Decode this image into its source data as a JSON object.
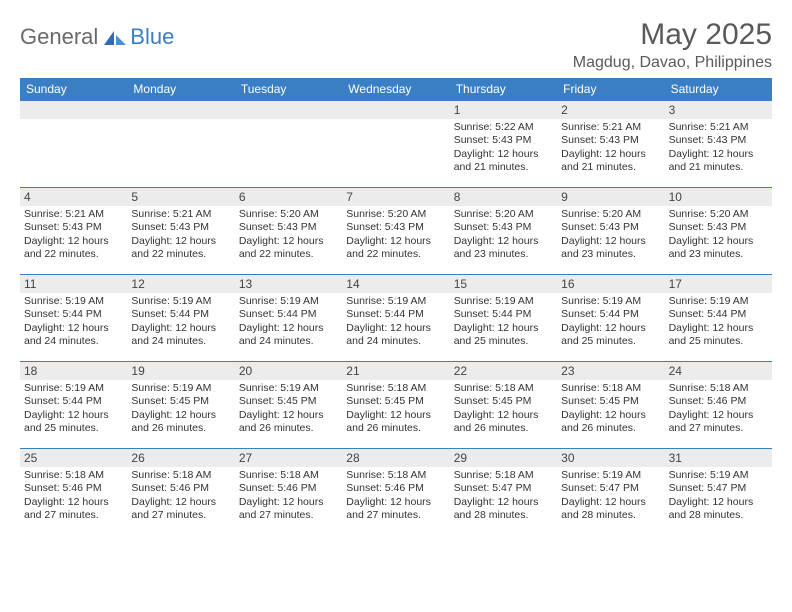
{
  "brand": {
    "general": "General",
    "blue": "Blue"
  },
  "title": "May 2025",
  "location": "Magdug, Davao, Philippines",
  "colors": {
    "header_bg": "#3a7fc4",
    "header_text": "#ffffff",
    "daynum_bg": "#ececec",
    "border": "#3a7fc4",
    "body_text": "#333333",
    "title_text": "#5a5a5a",
    "logo_gray": "#6a6a6a",
    "logo_blue": "#3a7fc4"
  },
  "day_headers": [
    "Sunday",
    "Monday",
    "Tuesday",
    "Wednesday",
    "Thursday",
    "Friday",
    "Saturday"
  ],
  "weeks": [
    [
      null,
      null,
      null,
      null,
      {
        "n": "1",
        "sr": "5:22 AM",
        "ss": "5:43 PM",
        "dl": "12 hours and 21 minutes."
      },
      {
        "n": "2",
        "sr": "5:21 AM",
        "ss": "5:43 PM",
        "dl": "12 hours and 21 minutes."
      },
      {
        "n": "3",
        "sr": "5:21 AM",
        "ss": "5:43 PM",
        "dl": "12 hours and 21 minutes."
      }
    ],
    [
      {
        "n": "4",
        "sr": "5:21 AM",
        "ss": "5:43 PM",
        "dl": "12 hours and 22 minutes."
      },
      {
        "n": "5",
        "sr": "5:21 AM",
        "ss": "5:43 PM",
        "dl": "12 hours and 22 minutes."
      },
      {
        "n": "6",
        "sr": "5:20 AM",
        "ss": "5:43 PM",
        "dl": "12 hours and 22 minutes."
      },
      {
        "n": "7",
        "sr": "5:20 AM",
        "ss": "5:43 PM",
        "dl": "12 hours and 22 minutes."
      },
      {
        "n": "8",
        "sr": "5:20 AM",
        "ss": "5:43 PM",
        "dl": "12 hours and 23 minutes."
      },
      {
        "n": "9",
        "sr": "5:20 AM",
        "ss": "5:43 PM",
        "dl": "12 hours and 23 minutes."
      },
      {
        "n": "10",
        "sr": "5:20 AM",
        "ss": "5:43 PM",
        "dl": "12 hours and 23 minutes."
      }
    ],
    [
      {
        "n": "11",
        "sr": "5:19 AM",
        "ss": "5:44 PM",
        "dl": "12 hours and 24 minutes."
      },
      {
        "n": "12",
        "sr": "5:19 AM",
        "ss": "5:44 PM",
        "dl": "12 hours and 24 minutes."
      },
      {
        "n": "13",
        "sr": "5:19 AM",
        "ss": "5:44 PM",
        "dl": "12 hours and 24 minutes."
      },
      {
        "n": "14",
        "sr": "5:19 AM",
        "ss": "5:44 PM",
        "dl": "12 hours and 24 minutes."
      },
      {
        "n": "15",
        "sr": "5:19 AM",
        "ss": "5:44 PM",
        "dl": "12 hours and 25 minutes."
      },
      {
        "n": "16",
        "sr": "5:19 AM",
        "ss": "5:44 PM",
        "dl": "12 hours and 25 minutes."
      },
      {
        "n": "17",
        "sr": "5:19 AM",
        "ss": "5:44 PM",
        "dl": "12 hours and 25 minutes."
      }
    ],
    [
      {
        "n": "18",
        "sr": "5:19 AM",
        "ss": "5:44 PM",
        "dl": "12 hours and 25 minutes."
      },
      {
        "n": "19",
        "sr": "5:19 AM",
        "ss": "5:45 PM",
        "dl": "12 hours and 26 minutes."
      },
      {
        "n": "20",
        "sr": "5:19 AM",
        "ss": "5:45 PM",
        "dl": "12 hours and 26 minutes."
      },
      {
        "n": "21",
        "sr": "5:18 AM",
        "ss": "5:45 PM",
        "dl": "12 hours and 26 minutes."
      },
      {
        "n": "22",
        "sr": "5:18 AM",
        "ss": "5:45 PM",
        "dl": "12 hours and 26 minutes."
      },
      {
        "n": "23",
        "sr": "5:18 AM",
        "ss": "5:45 PM",
        "dl": "12 hours and 26 minutes."
      },
      {
        "n": "24",
        "sr": "5:18 AM",
        "ss": "5:46 PM",
        "dl": "12 hours and 27 minutes."
      }
    ],
    [
      {
        "n": "25",
        "sr": "5:18 AM",
        "ss": "5:46 PM",
        "dl": "12 hours and 27 minutes."
      },
      {
        "n": "26",
        "sr": "5:18 AM",
        "ss": "5:46 PM",
        "dl": "12 hours and 27 minutes."
      },
      {
        "n": "27",
        "sr": "5:18 AM",
        "ss": "5:46 PM",
        "dl": "12 hours and 27 minutes."
      },
      {
        "n": "28",
        "sr": "5:18 AM",
        "ss": "5:46 PM",
        "dl": "12 hours and 27 minutes."
      },
      {
        "n": "29",
        "sr": "5:18 AM",
        "ss": "5:47 PM",
        "dl": "12 hours and 28 minutes."
      },
      {
        "n": "30",
        "sr": "5:19 AM",
        "ss": "5:47 PM",
        "dl": "12 hours and 28 minutes."
      },
      {
        "n": "31",
        "sr": "5:19 AM",
        "ss": "5:47 PM",
        "dl": "12 hours and 28 minutes."
      }
    ]
  ],
  "labels": {
    "sunrise": "Sunrise:",
    "sunset": "Sunset:",
    "daylight": "Daylight:"
  }
}
